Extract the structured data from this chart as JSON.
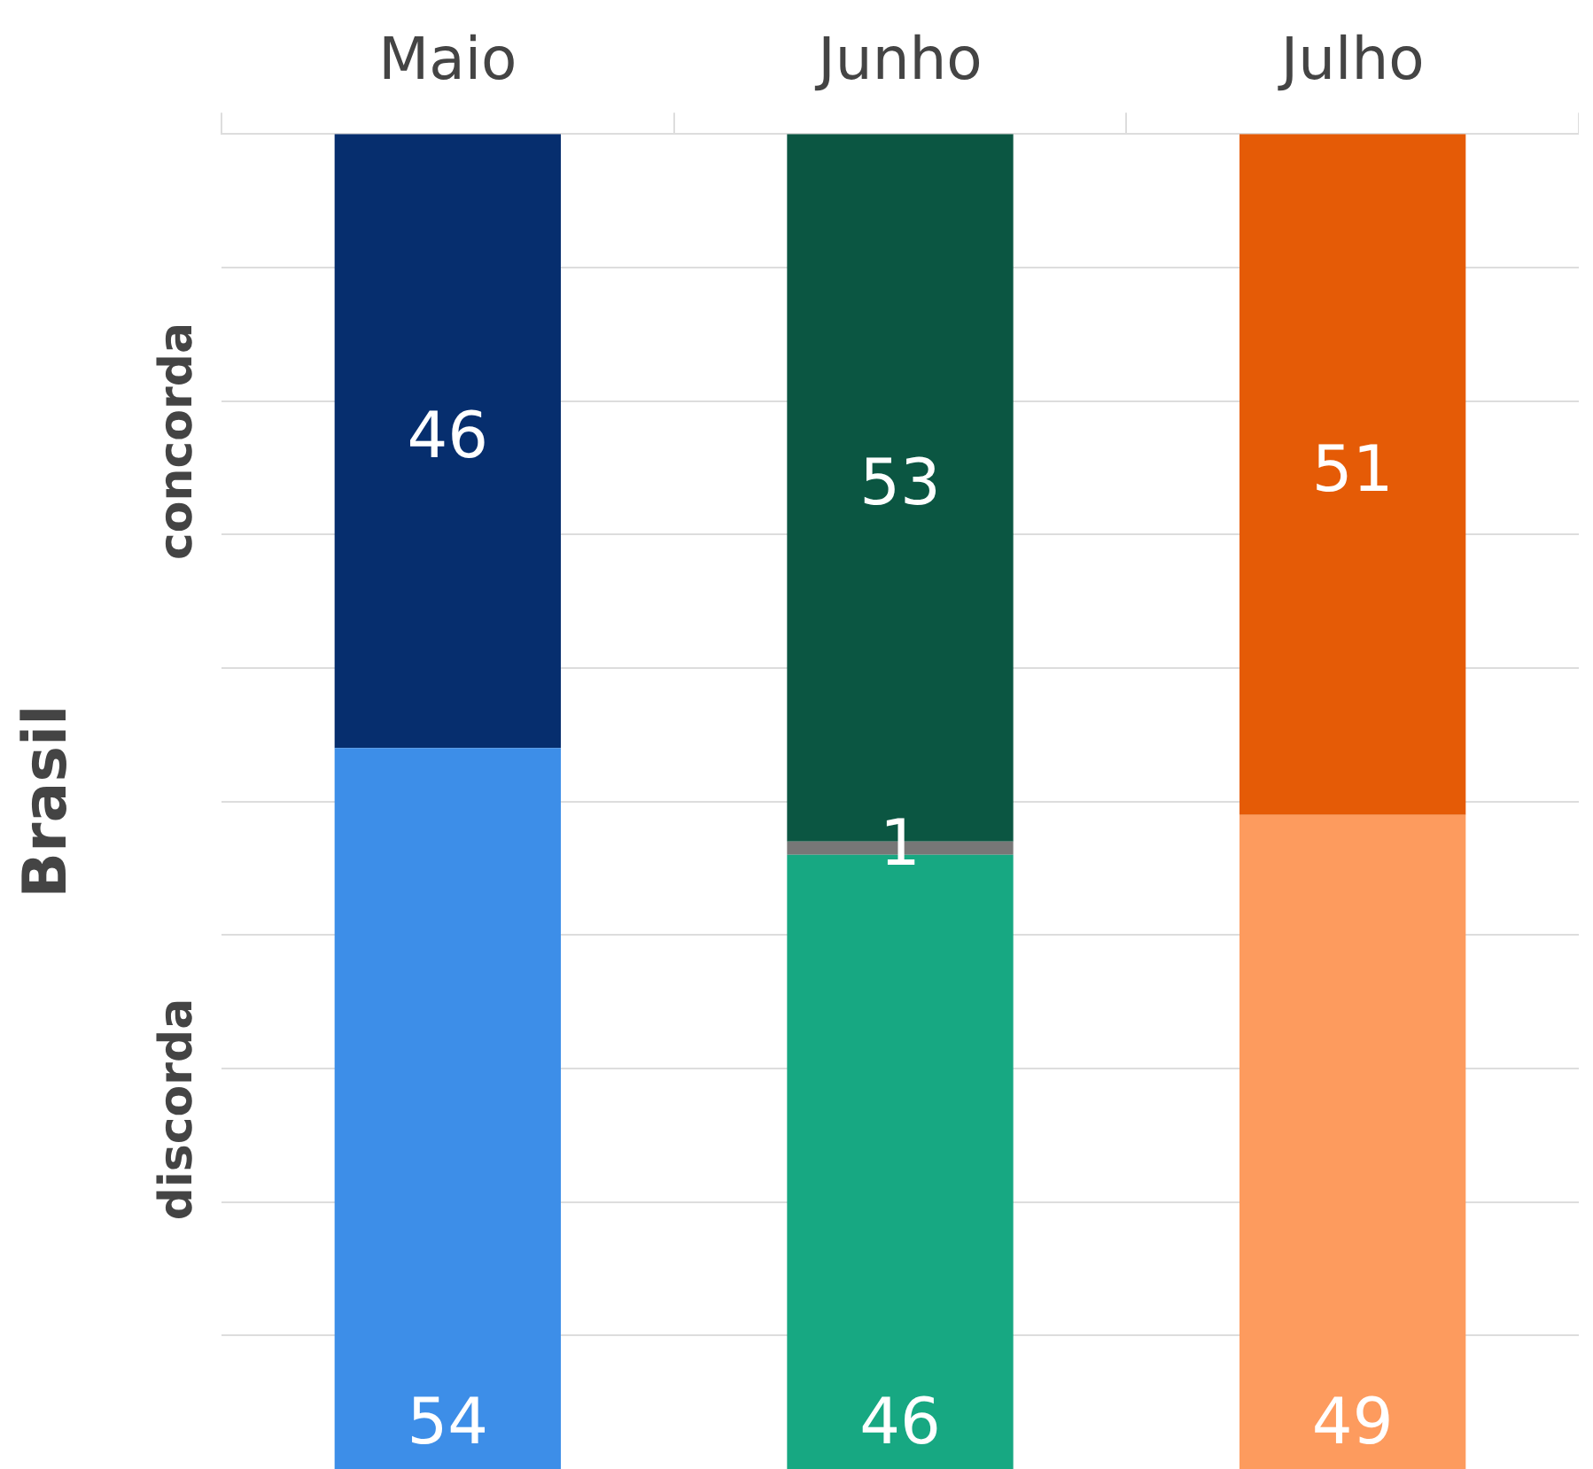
{
  "chart_data": {
    "type": "bar",
    "stacked": true,
    "categories": [
      "Maio",
      "Junho",
      "Julho"
    ],
    "ylabel": "Brasil",
    "series": [
      {
        "name": "discorda",
        "colors": [
          "#3d8ee8",
          "#17a882",
          "#fd9b5e"
        ],
        "values": [
          54,
          46,
          49
        ],
        "value_labels": [
          "54",
          "46",
          "49"
        ]
      },
      {
        "colors": [
          "#777777",
          "#777777",
          "#777777"
        ],
        "values": [
          null,
          1,
          null
        ],
        "value_labels": [
          null,
          "1",
          null
        ]
      },
      {
        "name": "concorda",
        "colors": [
          "#062e6e",
          "#0b5642",
          "#e55b06"
        ],
        "values": [
          46,
          53,
          51
        ],
        "value_labels": [
          "46",
          "53",
          "51"
        ]
      }
    ],
    "ylim": [
      0,
      100
    ],
    "yticks": [
      {
        "value": 10,
        "label": null
      },
      {
        "value": 20,
        "label": null
      },
      {
        "value": 30,
        "label": null
      },
      {
        "value": 40,
        "label": null
      },
      {
        "value": 50,
        "label": null
      },
      {
        "value": 60,
        "label": null
      },
      {
        "value": 70,
        "label": null
      },
      {
        "value": 80,
        "label": null
      },
      {
        "value": 90,
        "label": null
      },
      {
        "value": 100,
        "label": null
      }
    ],
    "tick_labels": "x",
    "grid": "y",
    "legend": false
  }
}
